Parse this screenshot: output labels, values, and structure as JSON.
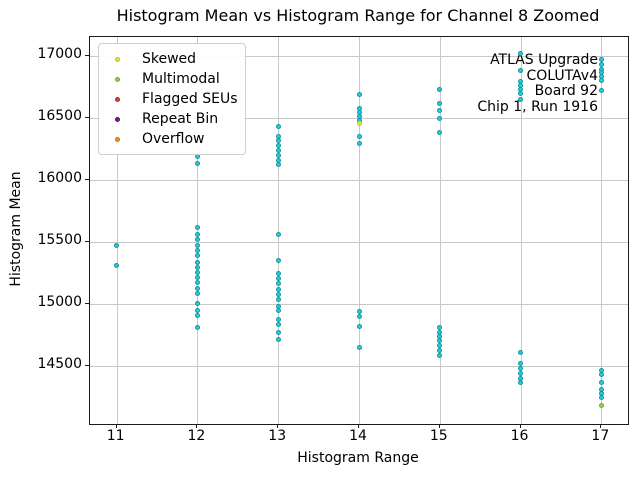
{
  "chart_data": {
    "type": "scatter",
    "title": "Histogram Mean vs Histogram Range for Channel 8 Zoomed",
    "xlabel": "Histogram Range",
    "ylabel": "Histogram Mean",
    "xlim": [
      10.67,
      17.33
    ],
    "ylim": [
      14030,
      17150
    ],
    "x_ticks": [
      11,
      12,
      13,
      14,
      15,
      16,
      17
    ],
    "y_ticks": [
      14500,
      15000,
      15500,
      16000,
      16500,
      17000
    ],
    "grid": true,
    "legend_position": "upper-left",
    "annotation": {
      "lines": [
        "ATLAS Upgrade",
        "COLUTAv4",
        "Board 92",
        "Chip 1, Run 1916"
      ],
      "position": "upper-right"
    },
    "series": [
      {
        "name": "",
        "in_legend": false,
        "color": "#2fc9d3",
        "edge_color": "#0d98a5",
        "points": [
          [
            11,
            15470
          ],
          [
            11,
            15310
          ],
          [
            12,
            16190
          ],
          [
            12,
            16130
          ],
          [
            12,
            15615
          ],
          [
            12,
            15560
          ],
          [
            12,
            15520
          ],
          [
            12,
            15470
          ],
          [
            12,
            15430
          ],
          [
            12,
            15385
          ],
          [
            12,
            15335
          ],
          [
            12,
            15295
          ],
          [
            12,
            15250
          ],
          [
            12,
            15210
          ],
          [
            12,
            15170
          ],
          [
            12,
            15120
          ],
          [
            12,
            15080
          ],
          [
            12,
            15000
          ],
          [
            12,
            14945
          ],
          [
            12,
            14905
          ],
          [
            12,
            14810
          ],
          [
            13,
            16425
          ],
          [
            13,
            16350
          ],
          [
            13,
            16315
          ],
          [
            13,
            16275
          ],
          [
            13,
            16235
          ],
          [
            13,
            16195
          ],
          [
            13,
            16155
          ],
          [
            13,
            16120
          ],
          [
            13,
            15560
          ],
          [
            13,
            15345
          ],
          [
            13,
            15240
          ],
          [
            13,
            15200
          ],
          [
            13,
            15160
          ],
          [
            13,
            15115
          ],
          [
            13,
            15075
          ],
          [
            13,
            15035
          ],
          [
            13,
            14975
          ],
          [
            13,
            14945
          ],
          [
            13,
            14875
          ],
          [
            13,
            14835
          ],
          [
            13,
            14770
          ],
          [
            13,
            14715
          ],
          [
            14,
            16685
          ],
          [
            14,
            16570
          ],
          [
            14,
            16540
          ],
          [
            14,
            16510
          ],
          [
            14,
            16480
          ],
          [
            14,
            16350
          ],
          [
            14,
            16295
          ],
          [
            14,
            14935
          ],
          [
            14,
            14900
          ],
          [
            14,
            14815
          ],
          [
            14,
            14650
          ],
          [
            15,
            16730
          ],
          [
            15,
            16610
          ],
          [
            15,
            16560
          ],
          [
            15,
            16490
          ],
          [
            15,
            16380
          ],
          [
            15,
            14805
          ],
          [
            15,
            14770
          ],
          [
            15,
            14735
          ],
          [
            15,
            14700
          ],
          [
            15,
            14665
          ],
          [
            15,
            14620
          ],
          [
            15,
            14585
          ],
          [
            16,
            17020
          ],
          [
            16,
            16880
          ],
          [
            16,
            16795
          ],
          [
            16,
            16760
          ],
          [
            16,
            16725
          ],
          [
            16,
            16695
          ],
          [
            16,
            16645
          ],
          [
            16,
            14605
          ],
          [
            16,
            14520
          ],
          [
            16,
            14480
          ],
          [
            16,
            14440
          ],
          [
            16,
            14400
          ],
          [
            16,
            14365
          ],
          [
            17,
            16970
          ],
          [
            17,
            16925
          ],
          [
            17,
            16890
          ],
          [
            17,
            16860
          ],
          [
            17,
            16830
          ],
          [
            17,
            16800
          ],
          [
            17,
            16715
          ],
          [
            17,
            14465
          ],
          [
            17,
            14430
          ],
          [
            17,
            14365
          ],
          [
            17,
            14310
          ],
          [
            17,
            14275
          ],
          [
            17,
            14245
          ]
        ]
      },
      {
        "name": "Skewed",
        "in_legend": true,
        "color": "#e7e438",
        "edge_color": "#c5c11c",
        "points": [
          [
            14,
            16455
          ]
        ]
      },
      {
        "name": "Multimodal",
        "in_legend": true,
        "color": "#8ed53e",
        "edge_color": "#65b523",
        "points": [
          [
            17,
            14180
          ]
        ]
      },
      {
        "name": "Flagged SEUs",
        "in_legend": true,
        "color": "#d64040",
        "edge_color": "#b02a2a",
        "points": []
      },
      {
        "name": "Repeat Bin",
        "in_legend": true,
        "color": "#7d1a8c",
        "edge_color": "#5c1168",
        "points": []
      },
      {
        "name": "Overflow",
        "in_legend": true,
        "color": "#f6911e",
        "edge_color": "#cc720a",
        "points": []
      }
    ]
  }
}
